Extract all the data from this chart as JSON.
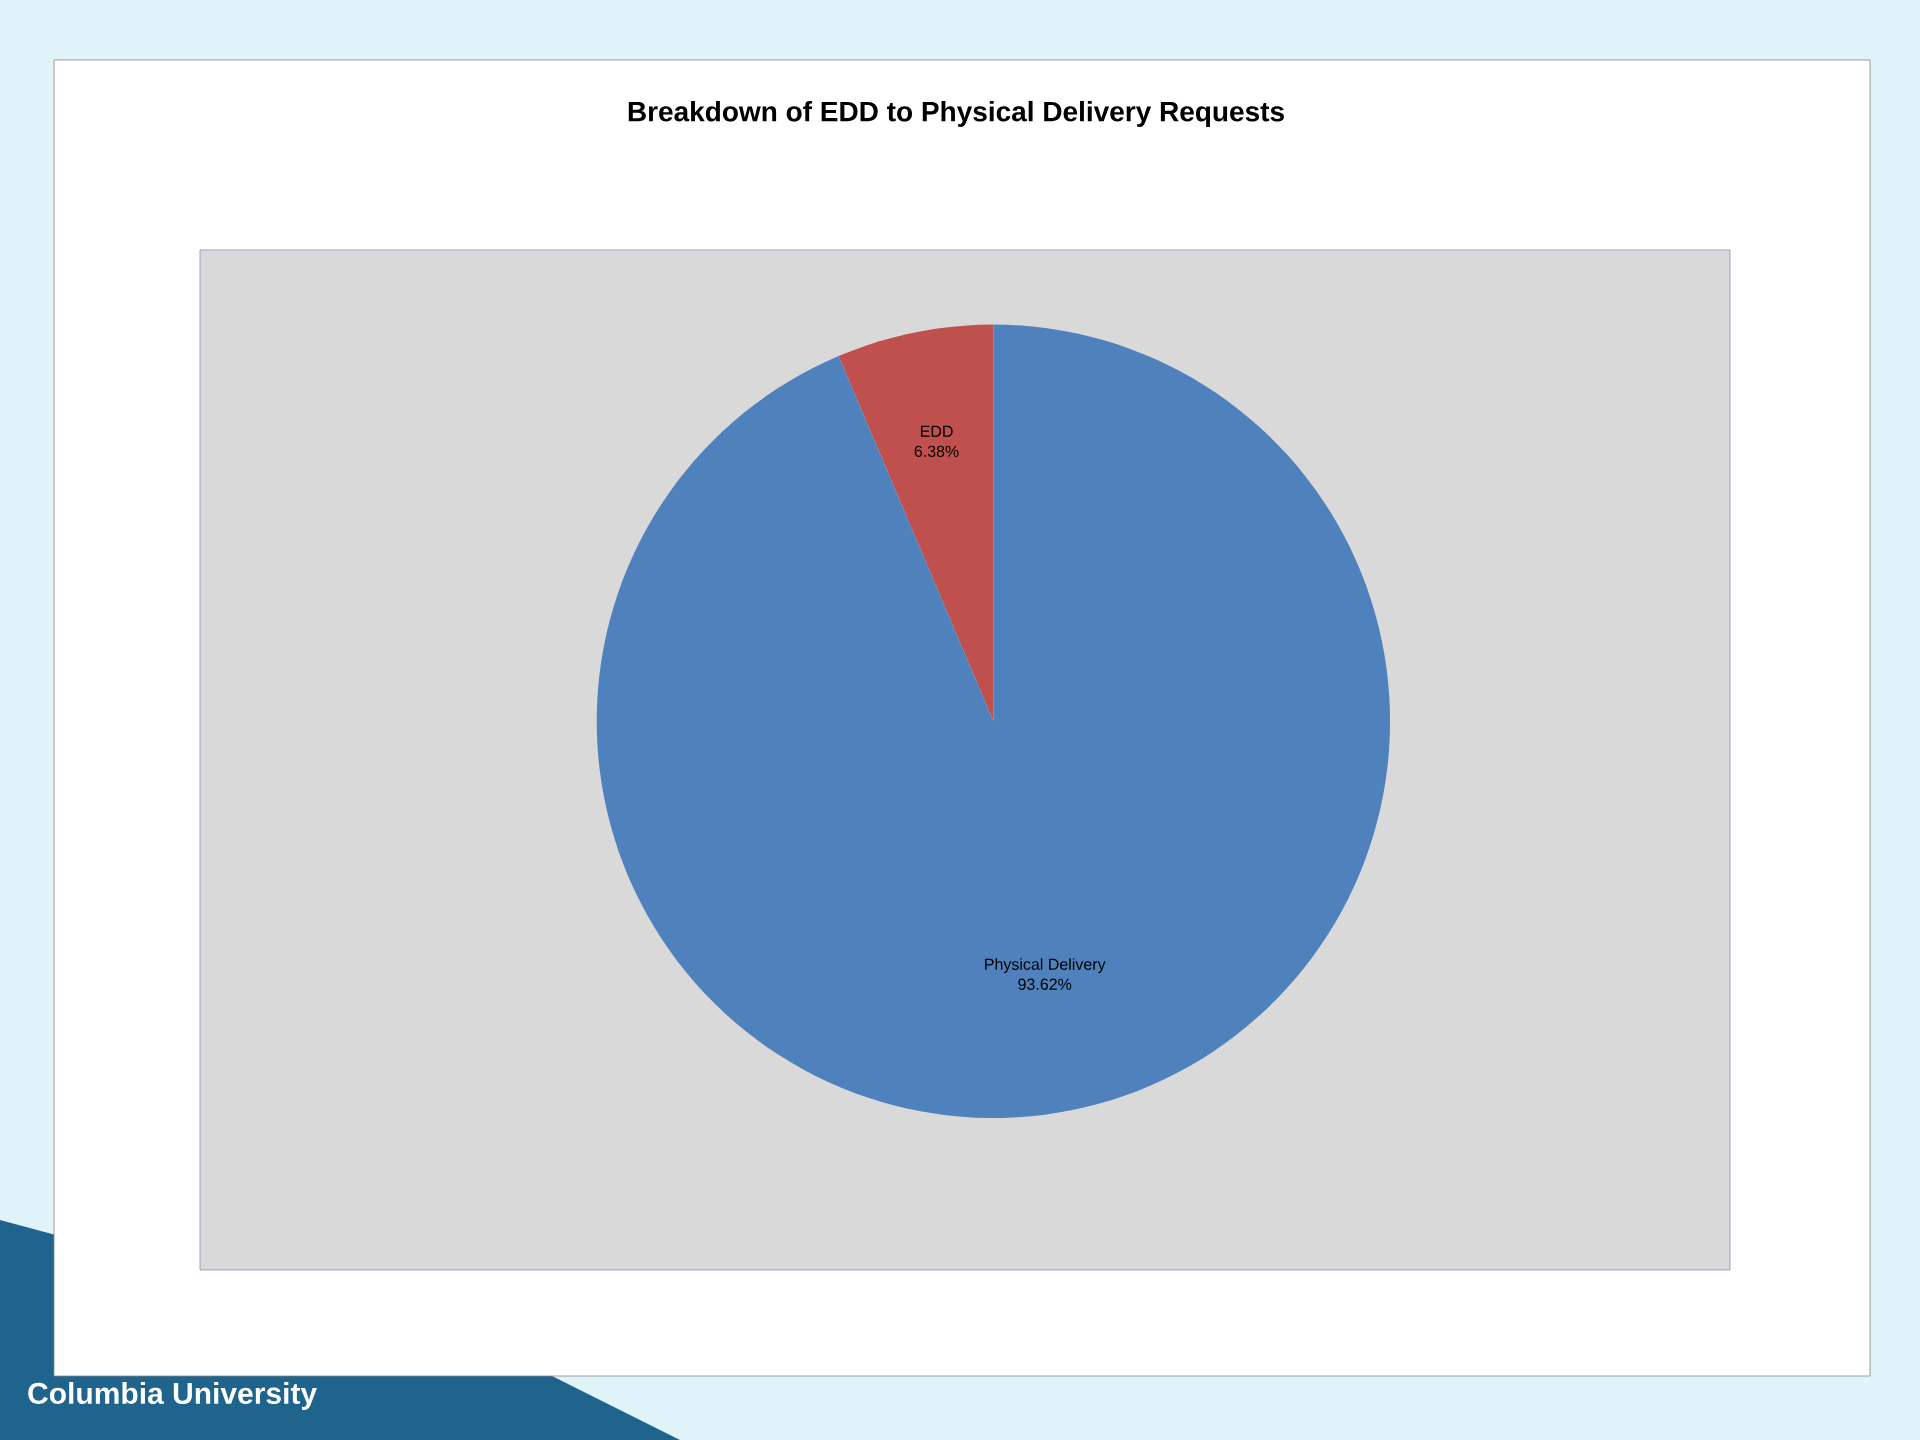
{
  "chart_data": {
    "type": "pie",
    "title": "Breakdown of EDD to Physical Delivery Requests",
    "categories": [
      "EDD",
      "Physical Delivery"
    ],
    "values": [
      6.38,
      93.62
    ],
    "colors": [
      "#c0504d",
      "#4f81bd"
    ],
    "value_labels": [
      "6.38%",
      "93.62%"
    ],
    "legend": false,
    "annotations": [
      "Columbia University"
    ]
  }
}
